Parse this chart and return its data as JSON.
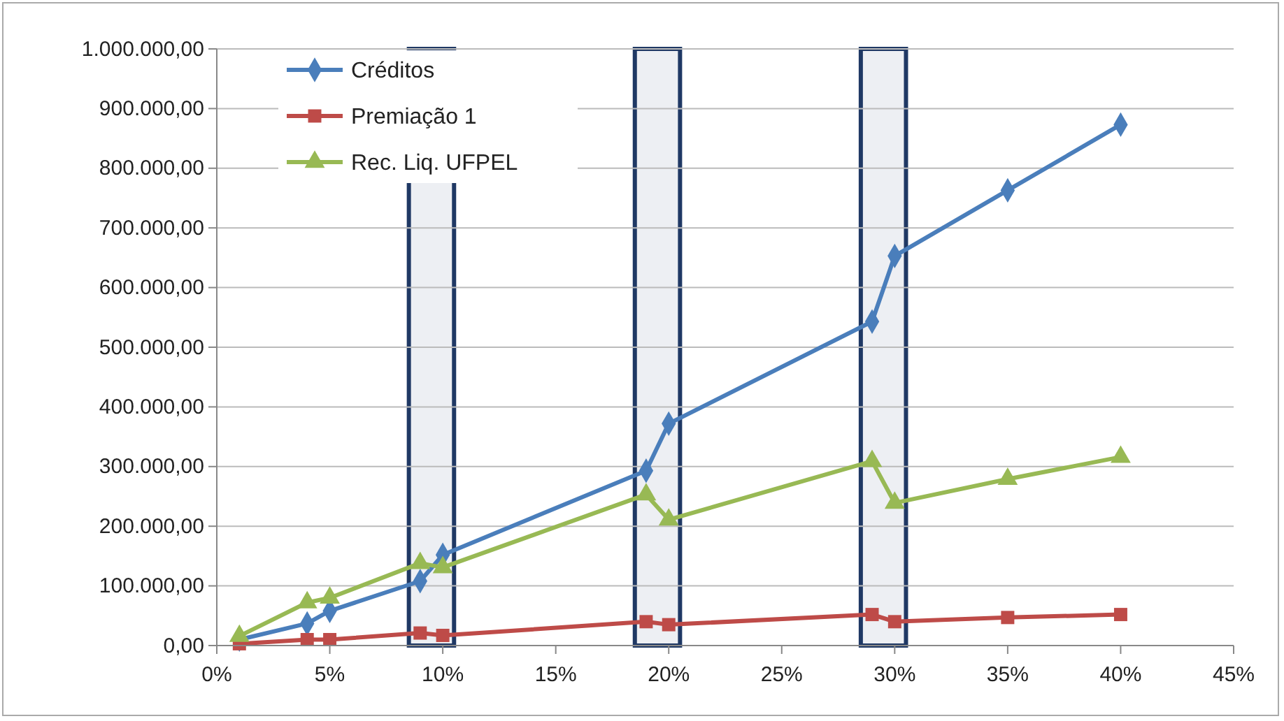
{
  "chart_data": {
    "type": "line",
    "x": [
      1,
      4,
      5,
      9,
      10,
      19,
      20,
      29,
      30,
      35,
      40
    ],
    "series": [
      {
        "name": "Créditos",
        "color": "#4a7ebb",
        "marker": "diamond",
        "values": [
          10000,
          37000,
          58000,
          108000,
          152000,
          293000,
          372000,
          543000,
          653000,
          763000,
          873000
        ]
      },
      {
        "name": "Premiação 1",
        "color": "#be4b48",
        "marker": "square",
        "values": [
          3000,
          10000,
          10000,
          21000,
          17000,
          40000,
          35000,
          52000,
          40000,
          47000,
          52000
        ]
      },
      {
        "name": "Rec. Liq. UFPEL",
        "color": "#98b954",
        "marker": "triangle",
        "values": [
          16000,
          72000,
          80000,
          138000,
          131000,
          253000,
          211000,
          309000,
          239000,
          279000,
          316000
        ]
      }
    ],
    "xlim": [
      0,
      45
    ],
    "xticks": [
      {
        "value": 0,
        "label": "0%"
      },
      {
        "value": 5,
        "label": "5%"
      },
      {
        "value": 10,
        "label": "10%"
      },
      {
        "value": 15,
        "label": "15%"
      },
      {
        "value": 20,
        "label": "20%"
      },
      {
        "value": 25,
        "label": "25%"
      },
      {
        "value": 30,
        "label": "30%"
      },
      {
        "value": 35,
        "label": "35%"
      },
      {
        "value": 40,
        "label": "40%"
      },
      {
        "value": 45,
        "label": "45%"
      }
    ],
    "ylim": [
      0,
      1000000
    ],
    "yticks": [
      {
        "value": 0,
        "label": "0,00"
      },
      {
        "value": 100000,
        "label": "100.000,00"
      },
      {
        "value": 200000,
        "label": "200.000,00"
      },
      {
        "value": 300000,
        "label": "300.000,00"
      },
      {
        "value": 400000,
        "label": "400.000,00"
      },
      {
        "value": 500000,
        "label": "500.000,00"
      },
      {
        "value": 600000,
        "label": "600.000,00"
      },
      {
        "value": 700000,
        "label": "700.000,00"
      },
      {
        "value": 800000,
        "label": "800.000,00"
      },
      {
        "value": 900000,
        "label": "900.000,00"
      },
      {
        "value": 1000000,
        "label": "1.000.000,00"
      }
    ],
    "bands": [
      {
        "axis": "x",
        "from": 8.5,
        "to": 10.5,
        "color": "#1f3864"
      },
      {
        "axis": "x",
        "from": 18.5,
        "to": 20.5,
        "color": "#1f3864"
      },
      {
        "axis": "x",
        "from": 28.5,
        "to": 30.5,
        "color": "#1f3864"
      }
    ],
    "grid": "y",
    "legend": "top left",
    "line_style": "solid"
  }
}
